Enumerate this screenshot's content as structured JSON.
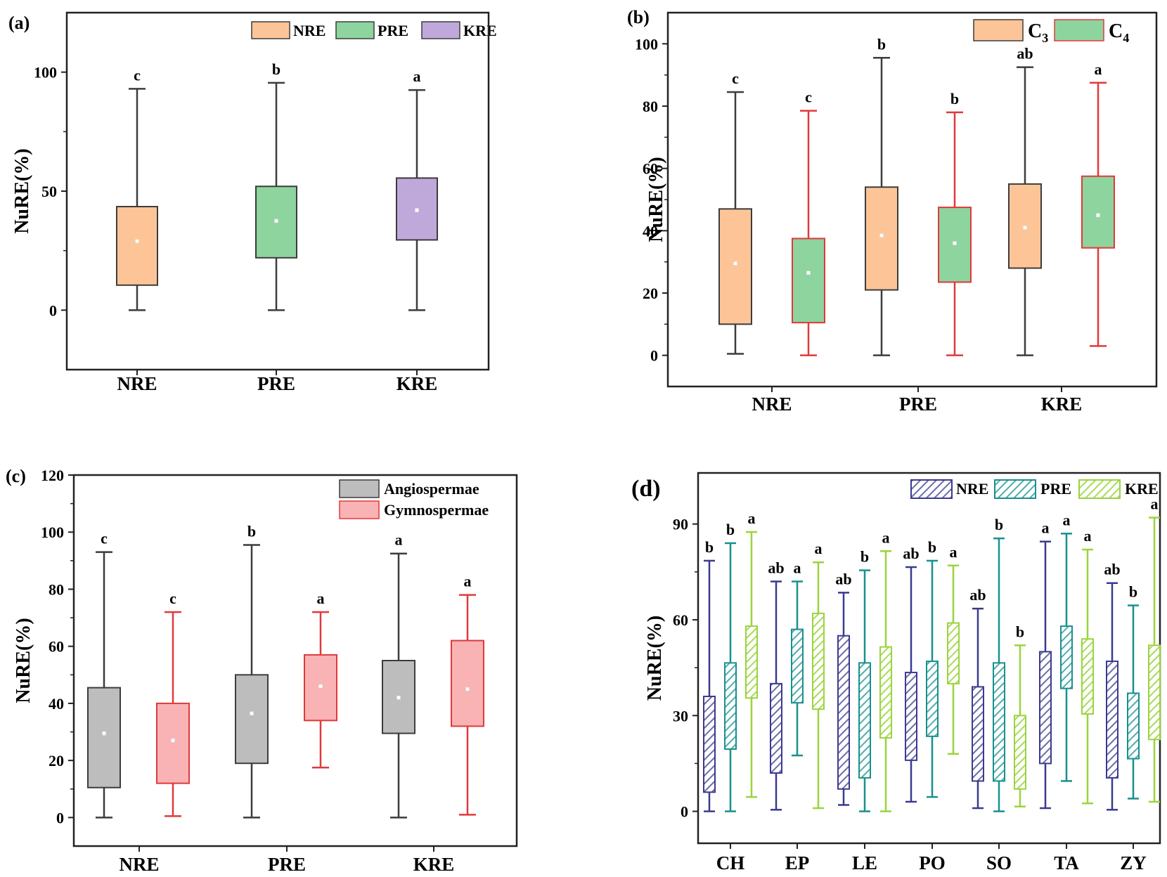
{
  "figure": {
    "kind": "box plots of nutrient resorption efficiency"
  },
  "colors": {
    "orange": "#FDC597",
    "green": "#8ED49E",
    "purple": "#BFA9DA",
    "gray": "#BDBDBD",
    "pink": "#F9B3B4",
    "dark": "#3C3C3C",
    "red": "#E0393B",
    "navy": "#3B3A8F",
    "teal": "#17918E",
    "lime": "#9AD43D"
  },
  "chart_data": [
    {
      "panel": "(a)",
      "type": "box",
      "ylabel": "NuRE(%)",
      "ylim": [
        -25,
        125
      ],
      "yticks": [
        0,
        50,
        100
      ],
      "categories": [
        "NRE",
        "PRE",
        "KRE"
      ],
      "legend": [
        "NRE",
        "PRE",
        "KRE"
      ],
      "series": [
        {
          "name": "all",
          "fills": [
            "orange",
            "green",
            "purple"
          ],
          "line": "dark",
          "boxes": [
            {
              "min": 0,
              "q1": 10.5,
              "median": 29,
              "q3": 43.5,
              "max": 93,
              "mean": 29,
              "letter": "c"
            },
            {
              "min": 0,
              "q1": 22,
              "median": 37.5,
              "q3": 52,
              "max": 95.5,
              "mean": 37.5,
              "letter": "b"
            },
            {
              "min": 0,
              "q1": 29.5,
              "median": 42,
              "q3": 55.5,
              "max": 92.5,
              "mean": 42,
              "letter": "a"
            }
          ]
        }
      ]
    },
    {
      "panel": "(b)",
      "type": "box",
      "ylabel": "NuRE(%)",
      "ylim": [
        -10,
        110
      ],
      "yticks": [
        0,
        20,
        40,
        60,
        80,
        100
      ],
      "categories": [
        "NRE",
        "PRE",
        "KRE"
      ],
      "legend": [
        {
          "base": "C",
          "sub": "3",
          "fill": "orange",
          "line": "dark"
        },
        {
          "base": "C",
          "sub": "4",
          "fill": "green",
          "line": "red"
        }
      ],
      "series": [
        {
          "name": "C3",
          "fill": "orange",
          "line": "dark",
          "boxes": [
            {
              "min": 0.5,
              "q1": 10,
              "median": 29.5,
              "q3": 47,
              "max": 84.5,
              "mean": 29.5,
              "letter": "c"
            },
            {
              "min": 0,
              "q1": 21,
              "median": 38.5,
              "q3": 54,
              "max": 95.5,
              "mean": 38.5,
              "letter": "b"
            },
            {
              "min": 0,
              "q1": 28,
              "median": 41,
              "q3": 55,
              "max": 92.5,
              "mean": 41,
              "letter": "ab"
            }
          ]
        },
        {
          "name": "C4",
          "fill": "green",
          "line": "red",
          "boxes": [
            {
              "min": 0,
              "q1": 10.5,
              "median": 26.5,
              "q3": 37.5,
              "max": 78.5,
              "mean": 26.5,
              "letter": "c"
            },
            {
              "min": 0,
              "q1": 23.5,
              "median": 36,
              "q3": 47.5,
              "max": 78,
              "mean": 36,
              "letter": "b"
            },
            {
              "min": 3,
              "q1": 34.5,
              "median": 45,
              "q3": 57.5,
              "max": 87.5,
              "mean": 45,
              "letter": "a"
            }
          ]
        }
      ]
    },
    {
      "panel": "(c)",
      "type": "box",
      "ylabel": "NuRE(%)",
      "ylim": [
        -10,
        120
      ],
      "yticks": [
        0,
        20,
        40,
        60,
        80,
        100,
        120
      ],
      "categories": [
        "NRE",
        "PRE",
        "KRE"
      ],
      "legend": [
        "Angiospermae",
        "Gymnospermae"
      ],
      "series": [
        {
          "name": "Angiospermae",
          "fill": "gray",
          "line": "dark",
          "boxes": [
            {
              "min": 0,
              "q1": 10.5,
              "median": 29.5,
              "q3": 45.5,
              "max": 93,
              "mean": 29.5,
              "letter": "c"
            },
            {
              "min": 0,
              "q1": 19,
              "median": 36.5,
              "q3": 50,
              "max": 95.5,
              "mean": 36.5,
              "letter": "b"
            },
            {
              "min": 0,
              "q1": 29.5,
              "median": 42,
              "q3": 55,
              "max": 92.5,
              "mean": 42,
              "letter": "a"
            }
          ]
        },
        {
          "name": "Gymnospermae",
          "fill": "pink",
          "line": "red",
          "boxes": [
            {
              "min": 0.5,
              "q1": 12,
              "median": 27,
              "q3": 40,
              "max": 72,
              "mean": 27,
              "letter": "c"
            },
            {
              "min": 17.5,
              "q1": 34,
              "median": 46,
              "q3": 57,
              "max": 72,
              "mean": 46,
              "letter": "a"
            },
            {
              "min": 1,
              "q1": 32,
              "median": 45,
              "q3": 62,
              "max": 78,
              "mean": 45,
              "letter": "a"
            }
          ]
        }
      ]
    },
    {
      "panel": "(d)",
      "type": "box",
      "ylabel": "NuRE(%)",
      "ylim": [
        -10,
        106
      ],
      "yticks": [
        0,
        30,
        60,
        90
      ],
      "categories": [
        "CH",
        "EP",
        "LE",
        "PO",
        "SO",
        "TA",
        "ZY"
      ],
      "legend": [
        "NRE",
        "PRE",
        "KRE"
      ],
      "series": [
        {
          "name": "NRE",
          "line": "navy",
          "boxes": [
            {
              "min": 0,
              "q1": 6,
              "q3": 36,
              "max": 78.5,
              "letter": "b"
            },
            {
              "min": 0.5,
              "q1": 12,
              "q3": 40,
              "max": 72,
              "letter": "ab"
            },
            {
              "min": 2,
              "q1": 7,
              "q3": 55,
              "max": 68.5,
              "letter": "ab"
            },
            {
              "min": 3,
              "q1": 16,
              "q3": 43.5,
              "max": 76.5,
              "letter": "ab"
            },
            {
              "min": 1,
              "q1": 9.5,
              "q3": 39,
              "max": 63.5,
              "letter": "ab"
            },
            {
              "min": 1,
              "q1": 15,
              "q3": 50,
              "max": 84.5,
              "letter": "a"
            },
            {
              "min": 0.5,
              "q1": 10.5,
              "q3": 47,
              "max": 71.5,
              "letter": "ab"
            }
          ]
        },
        {
          "name": "PRE",
          "line": "teal",
          "boxes": [
            {
              "min": 0,
              "q1": 19.5,
              "q3": 46.5,
              "max": 84,
              "letter": "b"
            },
            {
              "min": 17.5,
              "q1": 34,
              "q3": 57,
              "max": 72,
              "letter": "a"
            },
            {
              "min": 0,
              "q1": 10.5,
              "q3": 46.5,
              "max": 75.5,
              "letter": "b"
            },
            {
              "min": 4.5,
              "q1": 23.5,
              "q3": 47,
              "max": 78.5,
              "letter": "b"
            },
            {
              "min": 0,
              "q1": 9.5,
              "q3": 46.5,
              "max": 85.5,
              "letter": "b"
            },
            {
              "min": 9.5,
              "q1": 38.5,
              "q3": 58,
              "max": 87,
              "letter": "a"
            },
            {
              "min": 4,
              "q1": 16.5,
              "q3": 37,
              "max": 64.5,
              "letter": "b"
            }
          ]
        },
        {
          "name": "KRE",
          "line": "lime",
          "boxes": [
            {
              "min": 4.5,
              "q1": 35.5,
              "q3": 58,
              "max": 87.5,
              "letter": "a"
            },
            {
              "min": 1,
              "q1": 32,
              "q3": 62,
              "max": 78,
              "letter": "a"
            },
            {
              "min": 0,
              "q1": 23,
              "q3": 51.5,
              "max": 81.5,
              "letter": "a"
            },
            {
              "min": 18,
              "q1": 40,
              "q3": 59,
              "max": 77,
              "letter": "a"
            },
            {
              "min": 1.5,
              "q1": 7,
              "q3": 30,
              "max": 52,
              "letter": "b"
            },
            {
              "min": 2.5,
              "q1": 30.5,
              "q3": 54,
              "max": 82,
              "letter": "a"
            },
            {
              "min": 3,
              "q1": 22.5,
              "q3": 52,
              "max": 92,
              "letter": "a"
            }
          ]
        }
      ]
    }
  ]
}
